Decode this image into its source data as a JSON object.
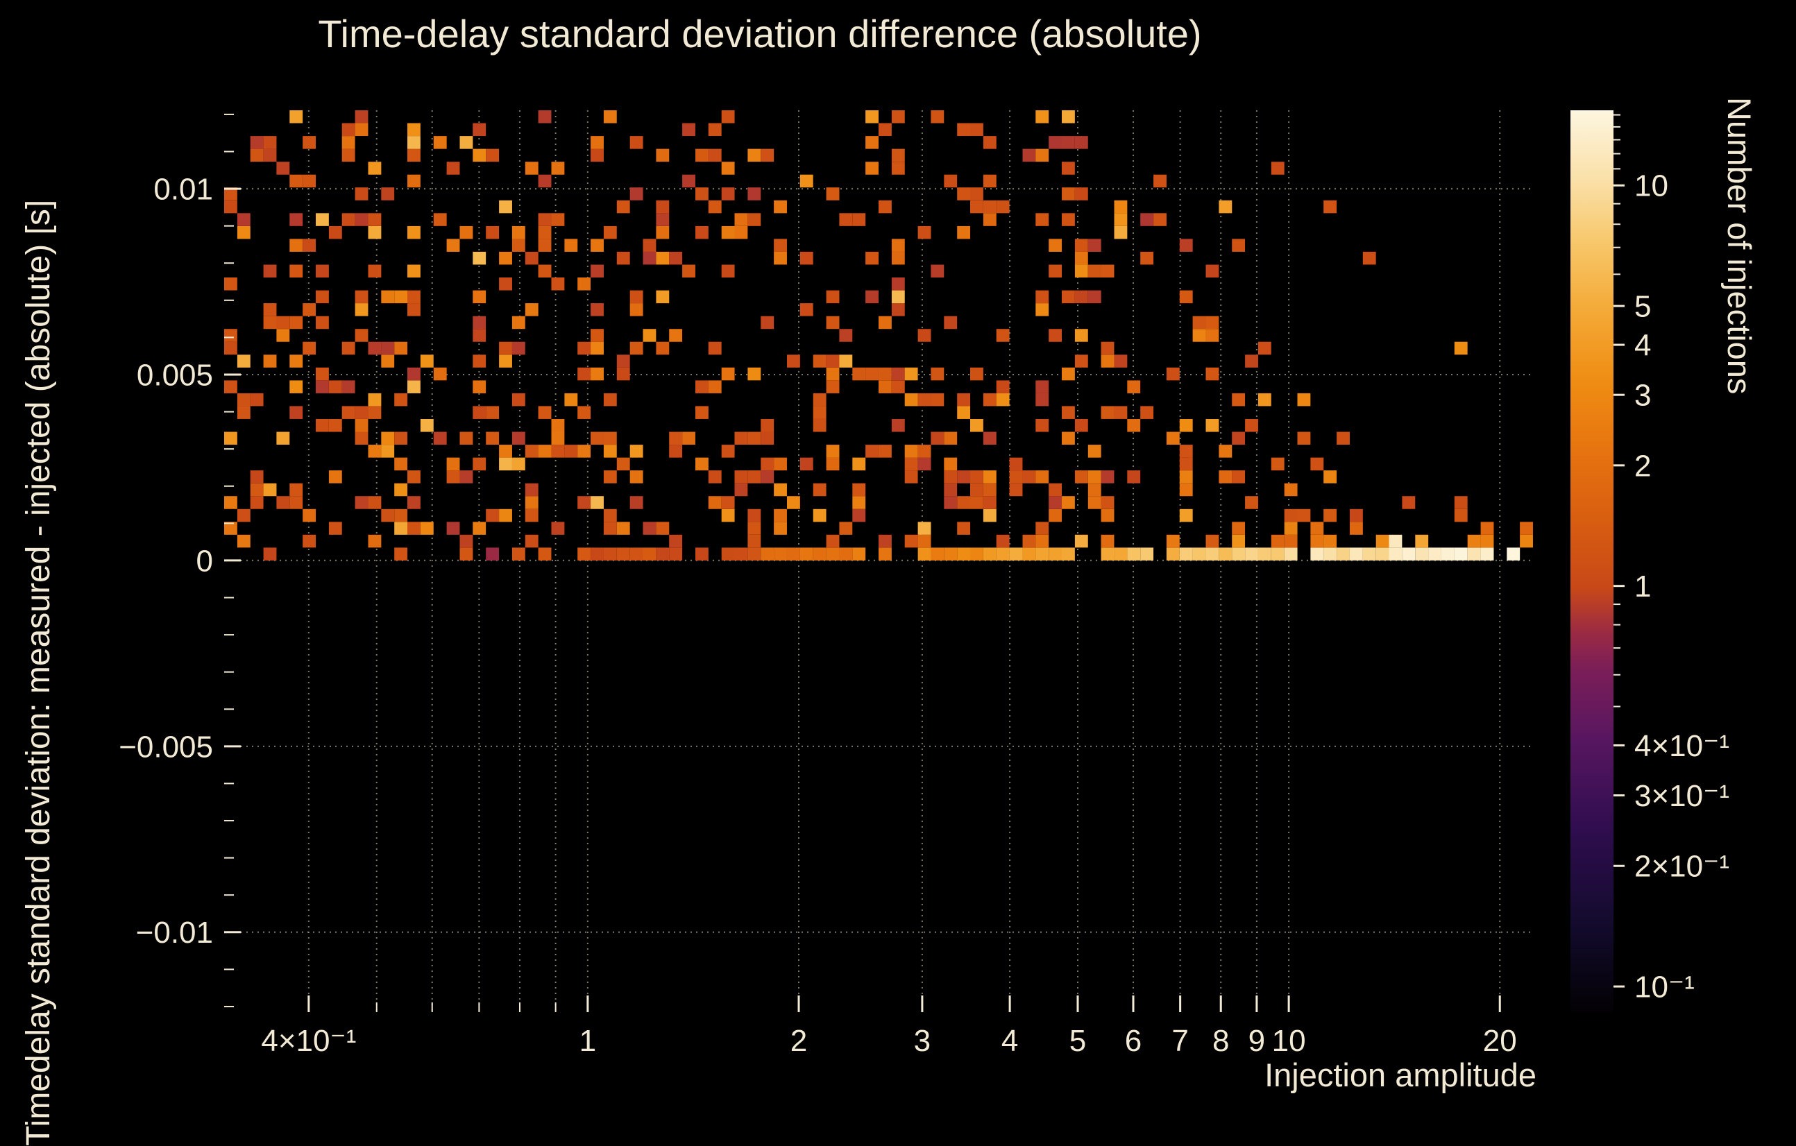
{
  "chart": {
    "title": "Time-delay standard deviation difference (absolute)",
    "x_axis_label": "Injection amplitude",
    "y_axis_label": "Timedelay standard deviation: measured - injected (absolute) [s]",
    "colorbar_label": "Number of injections",
    "colors": {
      "background": "#000000",
      "text": "#f2ead5",
      "grid": "#948e7c",
      "typical_cell": "#c84818"
    }
  },
  "chart_data": {
    "type": "heatmap",
    "title": "Time-delay standard deviation difference (absolute)",
    "xlabel": "Injection amplitude",
    "ylabel": "Timedelay standard deviation: measured - injected (absolute) [s]",
    "zlabel": "Number of injections",
    "x_scale": "log",
    "x_range": [
      0.303,
      22.3
    ],
    "y_scale": "linear",
    "y_range": [
      -0.01215,
      0.01211
    ],
    "z_scale": "log",
    "z_range": [
      0.0863,
      15.4
    ],
    "grid": "dotted lines at every labeled tick",
    "x_ticks": [
      {
        "value": 0.4,
        "label": "4×10⁻¹"
      },
      {
        "value": 1,
        "label": "1"
      },
      {
        "value": 2,
        "label": "2"
      },
      {
        "value": 3,
        "label": "3"
      },
      {
        "value": 4,
        "label": "4"
      },
      {
        "value": 5,
        "label": "5"
      },
      {
        "value": 6,
        "label": "6"
      },
      {
        "value": 7,
        "label": "7"
      },
      {
        "value": 8,
        "label": "8"
      },
      {
        "value": 9,
        "label": "9"
      },
      {
        "value": 10,
        "label": "10"
      },
      {
        "value": 20,
        "label": "20"
      }
    ],
    "x_minor_ticks": [
      0.5,
      0.6,
      0.7,
      0.8,
      0.9
    ],
    "y_ticks": [
      {
        "value": 0.01,
        "label": "0.01"
      },
      {
        "value": 0.005,
        "label": "0.005"
      },
      {
        "value": 0,
        "label": "0"
      },
      {
        "value": -0.005,
        "label": "−0.005"
      },
      {
        "value": -0.01,
        "label": "−0.01"
      }
    ],
    "y_minor_tick_step": 0.001,
    "colorbar_ticks": [
      {
        "value": 10,
        "label": "10"
      },
      {
        "value": 5,
        "label": "5"
      },
      {
        "value": 4,
        "label": "4"
      },
      {
        "value": 3,
        "label": "3"
      },
      {
        "value": 2,
        "label": "2"
      },
      {
        "value": 1,
        "label": "1"
      },
      {
        "value": 0.4,
        "label": "4×10⁻¹"
      },
      {
        "value": 0.3,
        "label": "3×10⁻¹"
      },
      {
        "value": 0.2,
        "label": "2×10⁻¹"
      },
      {
        "value": 0.1,
        "label": "10⁻¹"
      }
    ],
    "colorbar_minor_ticks": [
      15,
      14,
      13,
      12,
      11,
      9,
      8,
      7,
      6,
      0.9,
      0.8,
      0.7,
      0.6,
      0.5
    ],
    "colormap_stops": [
      [
        0.0,
        "#030104"
      ],
      [
        0.1,
        "#140b2e"
      ],
      [
        0.2,
        "#2e0d4e"
      ],
      [
        0.3,
        "#561660"
      ],
      [
        0.38,
        "#7b1e58"
      ],
      [
        0.42,
        "#9a2a44"
      ],
      [
        0.47,
        "#c84818"
      ],
      [
        0.55,
        "#d95f10"
      ],
      [
        0.62,
        "#e67310"
      ],
      [
        0.7,
        "#ef8d13"
      ],
      [
        0.78,
        "#f4aa38"
      ],
      [
        0.85,
        "#f7c668"
      ],
      [
        0.92,
        "#fadfa6"
      ],
      [
        1.0,
        "#fdf6e0"
      ]
    ],
    "heatmap_model": {
      "description": "2D histogram: scattered bins of count ~1-3 fill y in [0, 0.012] across all amplitudes, thinning toward y=0 for amplitude > ~4; no bins below y=0; a bright band along y≈0 rises from count ~1 at amplitude 1 to >10 (cream/white) near amplitude 20",
      "seed": 20240613,
      "n_x_bins": 100,
      "n_y_bins_positive": 35,
      "scatter_base_density": 0.24,
      "uniform_until_amplitude": 3.5,
      "scatter_sigma_y": 0.03,
      "sigma_power": 1.9,
      "band_min_amplitude": 0.95,
      "band_density": 0.88,
      "band_sparse_density": 0.33,
      "band_value_base": 1,
      "band_value_coeff": 7.5,
      "band_value_power": 1.9,
      "value_max": 15
    }
  }
}
